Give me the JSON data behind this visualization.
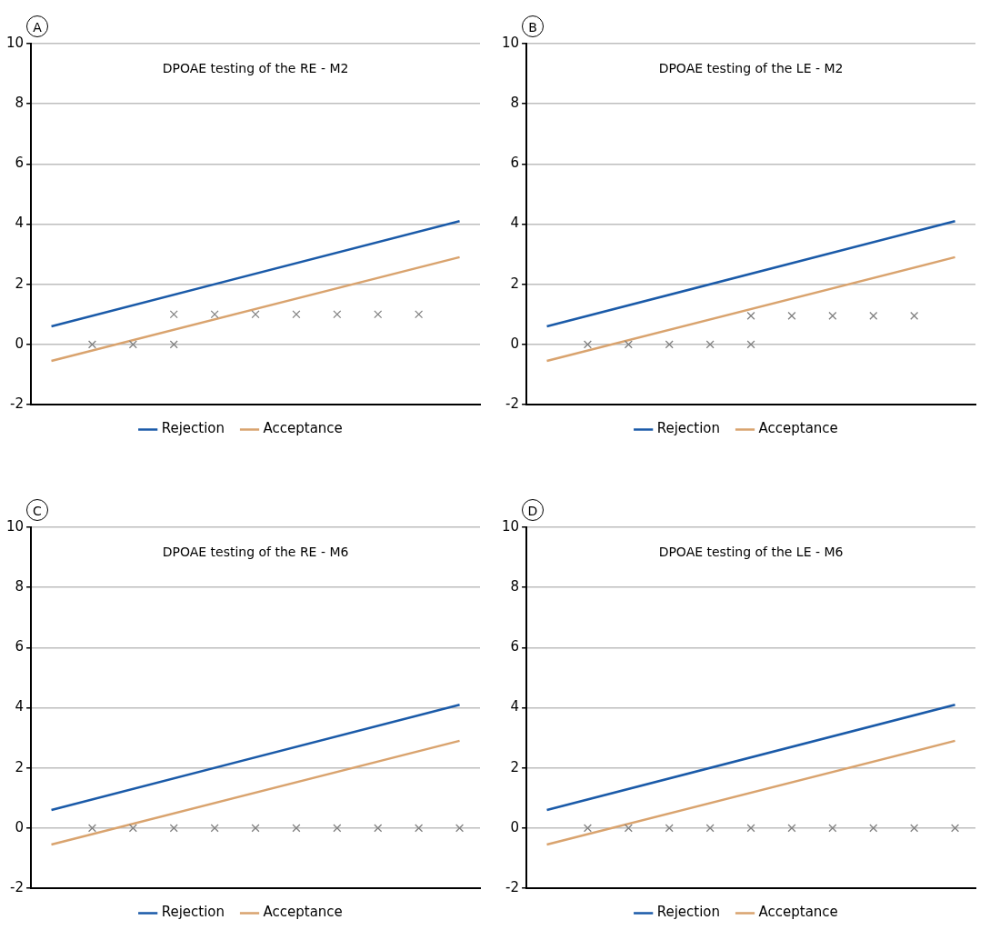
{
  "chart_data": [
    {
      "type": "line",
      "title": "DPOAE testing of the RE - M2",
      "annotations": [
        "A"
      ],
      "categories": [
        null,
        null,
        null,
        null,
        null,
        null,
        null,
        null,
        null,
        null,
        null
      ],
      "ylim": [
        -2,
        10
      ],
      "yticks": [
        -2,
        0,
        2,
        4,
        6,
        8,
        10
      ],
      "tick_labels": "y",
      "grid": "y",
      "legend": "bottom",
      "series": [
        {
          "name": "Rejection",
          "color": "#1a5aa8",
          "values": [
            0.6,
            null,
            null,
            null,
            null,
            null,
            null,
            null,
            null,
            null,
            4.1
          ]
        },
        {
          "name": "Acceptance",
          "color": "#d9a36e",
          "values": [
            -0.55,
            null,
            null,
            null,
            null,
            null,
            null,
            null,
            null,
            null,
            2.9
          ]
        },
        {
          "type": "scatter",
          "color": "#808080",
          "values": [
            null,
            0,
            0,
            0,
            null,
            null,
            null,
            null,
            null,
            null,
            null
          ],
          "marker": "cross"
        },
        {
          "type": "scatter",
          "color": "#808080",
          "values": [
            null,
            null,
            null,
            1,
            1,
            1,
            1,
            1,
            1,
            1,
            null
          ],
          "marker": "cross"
        }
      ]
    },
    {
      "type": "line",
      "title": "DPOAE testing of the LE - M2",
      "annotations": [
        "B"
      ],
      "categories": [
        null,
        null,
        null,
        null,
        null,
        null,
        null,
        null,
        null,
        null,
        null
      ],
      "ylim": [
        -2,
        10
      ],
      "yticks": [
        -2,
        0,
        2,
        4,
        6,
        8,
        10
      ],
      "tick_labels": "y",
      "grid": "y",
      "legend": "bottom",
      "series": [
        {
          "name": "Rejection",
          "color": "#1a5aa8",
          "values": [
            0.6,
            null,
            null,
            null,
            null,
            null,
            null,
            null,
            null,
            null,
            4.1
          ]
        },
        {
          "name": "Acceptance",
          "color": "#d9a36e",
          "values": [
            -0.55,
            null,
            null,
            null,
            null,
            null,
            null,
            null,
            null,
            null,
            2.9
          ]
        },
        {
          "type": "scatter",
          "color": "#808080",
          "values": [
            null,
            0,
            0,
            0,
            0,
            0,
            null,
            null,
            null,
            null,
            null
          ],
          "marker": "cross"
        },
        {
          "type": "scatter",
          "color": "#808080",
          "values": [
            null,
            null,
            null,
            null,
            null,
            0.95,
            0.95,
            0.95,
            0.95,
            0.95,
            null
          ],
          "marker": "cross"
        }
      ]
    },
    {
      "type": "line",
      "title": "DPOAE testing of the RE - M6",
      "annotations": [
        "C"
      ],
      "categories": [
        null,
        null,
        null,
        null,
        null,
        null,
        null,
        null,
        null,
        null,
        null
      ],
      "ylim": [
        -2,
        10
      ],
      "yticks": [
        -2,
        0,
        2,
        4,
        6,
        8,
        10
      ],
      "tick_labels": "y",
      "grid": "y",
      "legend": "bottom",
      "series": [
        {
          "name": "Rejection",
          "color": "#1a5aa8",
          "values": [
            0.6,
            null,
            null,
            null,
            null,
            null,
            null,
            null,
            null,
            null,
            4.1
          ]
        },
        {
          "name": "Acceptance",
          "color": "#d9a36e",
          "values": [
            -0.55,
            null,
            null,
            null,
            null,
            null,
            null,
            null,
            null,
            null,
            2.9
          ]
        },
        {
          "type": "scatter",
          "color": "#808080",
          "values": [
            null,
            0,
            0,
            0,
            0,
            0,
            0,
            0,
            0,
            0,
            0
          ],
          "marker": "cross"
        }
      ]
    },
    {
      "type": "line",
      "title": "DPOAE testing of the LE - M6",
      "annotations": [
        "D"
      ],
      "categories": [
        null,
        null,
        null,
        null,
        null,
        null,
        null,
        null,
        null,
        null,
        null
      ],
      "ylim": [
        -2,
        10
      ],
      "yticks": [
        -2,
        0,
        2,
        4,
        6,
        8,
        10
      ],
      "tick_labels": "y",
      "grid": "y",
      "legend": "bottom",
      "series": [
        {
          "name": "Rejection",
          "color": "#1a5aa8",
          "values": [
            0.6,
            null,
            null,
            null,
            null,
            null,
            null,
            null,
            null,
            null,
            4.1
          ]
        },
        {
          "name": "Acceptance",
          "color": "#d9a36e",
          "values": [
            -0.55,
            null,
            null,
            null,
            null,
            null,
            null,
            null,
            null,
            null,
            2.9
          ]
        },
        {
          "type": "scatter",
          "color": "#808080",
          "values": [
            null,
            0,
            0,
            0,
            0,
            0,
            0,
            0,
            0,
            0,
            0
          ],
          "marker": "cross"
        }
      ]
    }
  ]
}
